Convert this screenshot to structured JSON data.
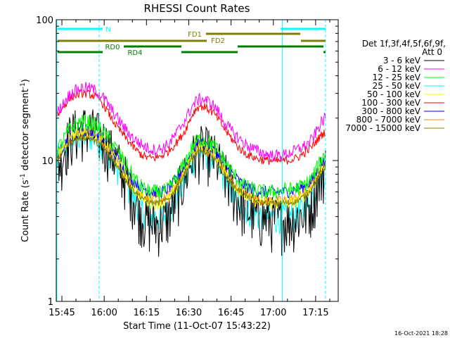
{
  "chart_data": {
    "type": "line",
    "title": "RHESSI Count Rates",
    "xlabel": "Start Time (11-Oct-07 15:43:22)",
    "ylabel_main": "Count Rate (s",
    "ylabel_sup1": "-1",
    "ylabel_mid": " detector segment",
    "ylabel_sup2": "-1",
    "ylabel_end": ")",
    "y_scale": "log",
    "ylim": [
      1,
      100
    ],
    "xlim_minutes": [
      -2,
      98
    ],
    "x_ticks": [
      {
        "label": "15:45",
        "t": 0
      },
      {
        "label": "16:00",
        "t": 15
      },
      {
        "label": "16:15",
        "t": 30
      },
      {
        "label": "16:30",
        "t": 45
      },
      {
        "label": "16:45",
        "t": 60
      },
      {
        "label": "17:00",
        "t": 75
      },
      {
        "label": "17:15",
        "t": 90
      }
    ],
    "y_tick_labels": [
      {
        "label": "1",
        "v": 1
      },
      {
        "label": "10",
        "v": 10
      },
      {
        "label": "100",
        "v": 100
      }
    ],
    "legend": {
      "header1": "Det 1f,3f,4f,5f,6f,9f,",
      "header2": "Att 0",
      "position": "right"
    },
    "series": [
      {
        "name": "3 - 6 keV",
        "color": "#000000",
        "base": [
          9,
          15,
          17,
          15,
          11,
          7,
          4.2,
          3.6,
          4.3,
          7.5,
          12,
          11,
          7.5,
          5,
          4.2,
          3.9,
          3.8,
          4,
          5,
          9
        ],
        "noise": 0.45
      },
      {
        "name": "6 - 12 keV",
        "color": "#ff00ff",
        "base": [
          22,
          30,
          33,
          30,
          22,
          16,
          13,
          12,
          13.5,
          19,
          27,
          25,
          18,
          14,
          12,
          11,
          11,
          12,
          14,
          20
        ],
        "noise": 0.1
      },
      {
        "name": "12 - 25 keV",
        "color": "#00ff00",
        "base": [
          12,
          17,
          19,
          17,
          13,
          9,
          6.5,
          6,
          6.5,
          9.5,
          14,
          13,
          9.5,
          7,
          6.2,
          6,
          6.2,
          6.4,
          7.5,
          11
        ],
        "noise": 0.13
      },
      {
        "name": "25 - 50 keV",
        "color": "#00ffff",
        "base": [
          10,
          14,
          15,
          14,
          10,
          6.5,
          4.5,
          4,
          4.5,
          7,
          11.5,
          10.5,
          7,
          5,
          4.2,
          4,
          4,
          4.2,
          5.5,
          8.5
        ],
        "noise": 0.25
      },
      {
        "name": "50 - 100 keV",
        "color": "#ffff00",
        "base": [
          11,
          15,
          16,
          15,
          11,
          7.5,
          5.5,
          5,
          5.5,
          8,
          12.5,
          11.5,
          8,
          6,
          5.2,
          5,
          5,
          5.2,
          6.5,
          9.5
        ],
        "noise": 0.1
      },
      {
        "name": "100 - 300 keV",
        "color": "#ff0000",
        "base": [
          21,
          28,
          30,
          27,
          19,
          14,
          11,
          10.5,
          12,
          16,
          24,
          22,
          16,
          12,
          10.5,
          10,
          10,
          10.5,
          12.5,
          16
        ],
        "noise": 0.07
      },
      {
        "name": "300 - 800 keV",
        "color": "#0000ff",
        "base": [
          11,
          15,
          16,
          15,
          11.5,
          8,
          6.5,
          6,
          6.5,
          9,
          13,
          12,
          9,
          7,
          6.2,
          6,
          6,
          6.3,
          7.2,
          10
        ],
        "noise": 0.1
      },
      {
        "name": "800 - 7000 keV",
        "color": "#ff8000",
        "base": [
          10.5,
          14.5,
          15.5,
          14,
          10.5,
          7.2,
          5.8,
          5.3,
          5.8,
          8.5,
          12,
          11,
          8,
          6.2,
          5.4,
          5.2,
          5.2,
          5.5,
          6.6,
          9.4
        ],
        "noise": 0.09
      },
      {
        "name": "7000 - 15000 keV",
        "color": "#808000",
        "base": [
          10,
          13.5,
          14.5,
          13,
          10,
          7,
          5.5,
          5,
          5.5,
          8,
          11.5,
          10.5,
          7.6,
          6,
          5.2,
          5,
          5,
          5.2,
          6.3,
          9
        ],
        "noise": 0.05
      }
    ],
    "annotations": {
      "N": {
        "label": "N",
        "color": "#00ffff",
        "segments": [
          [
            -2,
            13
          ],
          [
            78,
            98
          ]
        ]
      },
      "FD1": {
        "label": "FD1",
        "color": "#808000",
        "segments": [
          [
            -2,
            13
          ],
          [
            30,
            52
          ],
          [
            52,
            95
          ]
        ]
      },
      "FD2": {
        "label": "FD2",
        "color": "#808000",
        "segments": [
          [
            -2,
            45
          ],
          [
            60,
            85
          ],
          [
            89,
            98
          ]
        ]
      },
      "RD0": {
        "label": "RD0",
        "color": "#008000",
        "segments": [
          [
            -2,
            40
          ],
          [
            60,
            95
          ]
        ]
      },
      "RD4": {
        "label": "RD4",
        "color": "#008000",
        "segments": [
          [
            -2,
            26
          ],
          [
            26,
            44
          ],
          [
            44,
            66
          ],
          [
            96,
            98
          ]
        ]
      },
      "verticals": [
        {
          "t": -1.8,
          "color": "#00ffff",
          "dash": false
        },
        {
          "t": 13.2,
          "color": "#00ffff",
          "dash": true
        },
        {
          "t": 78.2,
          "color": "#00ffff",
          "dash": false
        },
        {
          "t": 93.5,
          "color": "#00ffff",
          "dash": true
        }
      ]
    },
    "timestamp": "16-Oct-2021 18:28"
  }
}
